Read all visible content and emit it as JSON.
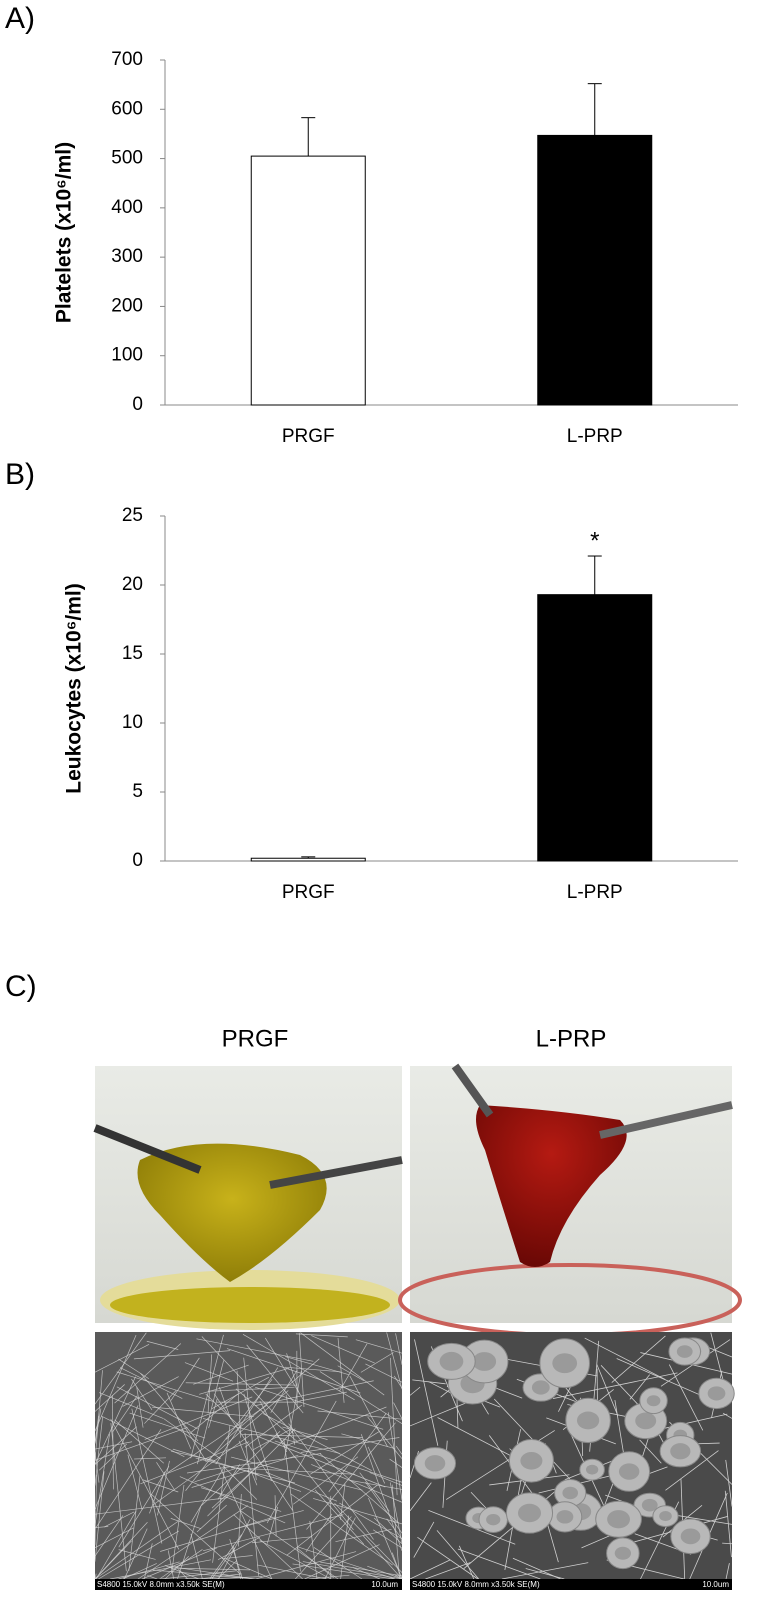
{
  "chart_data": [
    {
      "type": "bar",
      "panel_label": "A)",
      "y_label": "Platelets (x10⁶/ml)",
      "categories": [
        "PRGF",
        "L-PRP"
      ],
      "values": [
        505,
        547
      ],
      "errors": [
        78,
        105
      ],
      "colors": [
        "#ffffff",
        "#000000"
      ],
      "ylim": [
        0,
        700
      ],
      "yticks": [
        0,
        100,
        200,
        300,
        400,
        500,
        600,
        700
      ]
    },
    {
      "type": "bar",
      "panel_label": "B)",
      "y_label": "Leukocytes (x10⁶/ml)",
      "categories": [
        "PRGF",
        "L-PRP"
      ],
      "values": [
        0.2,
        19.3
      ],
      "errors": [
        0.1,
        2.8
      ],
      "annotations": [
        null,
        "*"
      ],
      "colors": [
        "#ffffff",
        "#000000"
      ],
      "ylim": [
        0,
        25
      ],
      "yticks": [
        0,
        5,
        10,
        15,
        20,
        25
      ]
    }
  ],
  "panel_c": {
    "label": "C)",
    "columns": [
      "PRGF",
      "L-PRP"
    ],
    "sem_caption": "S4800 15.0kV 8.0mm x3.50k SE(M)",
    "sem_scale": "10.0um"
  }
}
